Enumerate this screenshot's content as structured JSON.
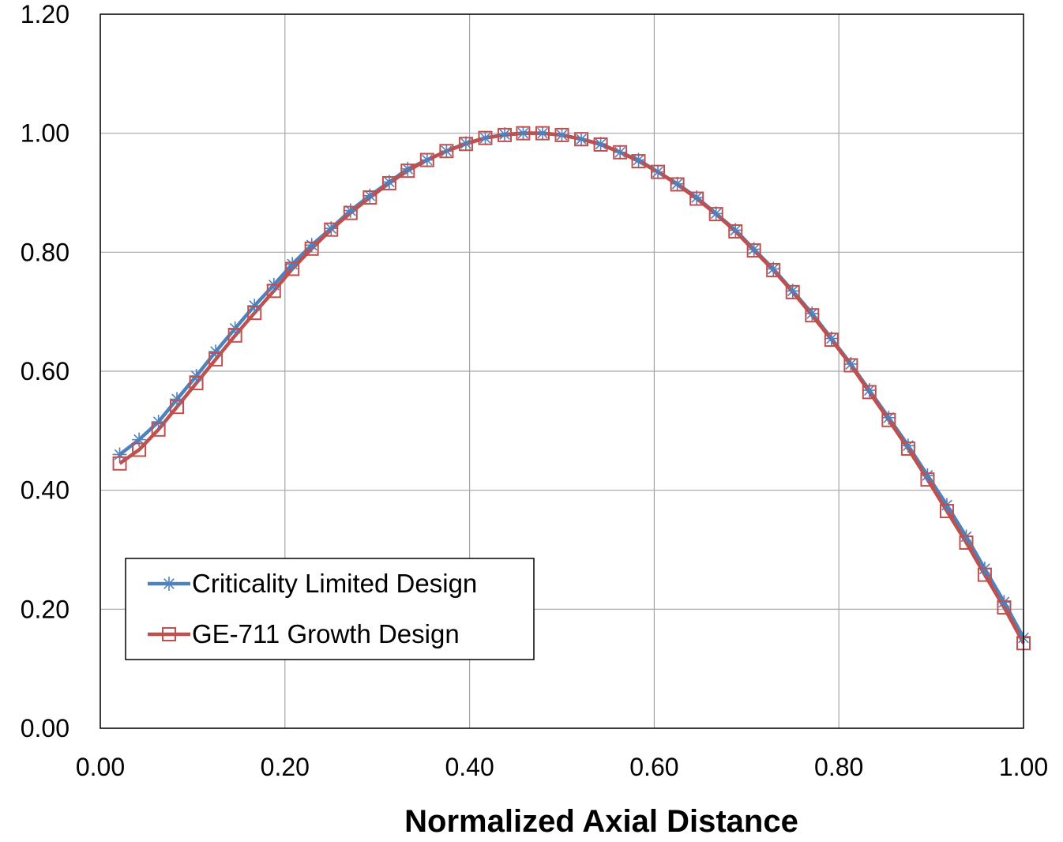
{
  "chart_data": {
    "type": "line",
    "title": "",
    "xlabel": "Normalized Axial Distance",
    "ylabel": "",
    "xlim": [
      0,
      1
    ],
    "ylim": [
      0,
      1.2
    ],
    "grid": true,
    "legend_position": "bottom-left",
    "x_ticks": [
      "0.00",
      "0.20",
      "0.40",
      "0.60",
      "0.80",
      "1.00"
    ],
    "y_ticks": [
      "0.00",
      "0.20",
      "0.40",
      "0.60",
      "0.80",
      "1.00",
      "1.20"
    ],
    "x": [
      0.021,
      0.042,
      0.063,
      0.083,
      0.104,
      0.125,
      0.146,
      0.167,
      0.188,
      0.208,
      0.229,
      0.25,
      0.271,
      0.292,
      0.313,
      0.333,
      0.354,
      0.375,
      0.396,
      0.417,
      0.438,
      0.458,
      0.479,
      0.5,
      0.521,
      0.542,
      0.563,
      0.583,
      0.604,
      0.625,
      0.646,
      0.667,
      0.688,
      0.708,
      0.729,
      0.75,
      0.771,
      0.792,
      0.813,
      0.833,
      0.854,
      0.875,
      0.896,
      0.917,
      0.938,
      0.958,
      0.979,
      1.0
    ],
    "series": [
      {
        "name": "Criticality Limited Design",
        "color": "#4f81bd",
        "marker": "asterisk",
        "values": [
          0.46,
          0.485,
          0.515,
          0.553,
          0.592,
          0.633,
          0.672,
          0.71,
          0.745,
          0.78,
          0.812,
          0.84,
          0.87,
          0.895,
          0.918,
          0.94,
          0.955,
          0.97,
          0.983,
          0.992,
          0.998,
          1.0,
          1.0,
          0.997,
          0.99,
          0.982,
          0.968,
          0.955,
          0.935,
          0.915,
          0.892,
          0.865,
          0.837,
          0.805,
          0.772,
          0.735,
          0.697,
          0.655,
          0.612,
          0.568,
          0.522,
          0.475,
          0.425,
          0.375,
          0.322,
          0.268,
          0.212,
          0.152
        ]
      },
      {
        "name": "GE-711 Growth Design",
        "color": "#c0504d",
        "marker": "square",
        "values": [
          0.445,
          0.468,
          0.502,
          0.54,
          0.58,
          0.62,
          0.66,
          0.698,
          0.735,
          0.772,
          0.806,
          0.838,
          0.866,
          0.892,
          0.916,
          0.937,
          0.955,
          0.97,
          0.982,
          0.992,
          0.997,
          1.0,
          1.0,
          0.997,
          0.99,
          0.981,
          0.968,
          0.953,
          0.935,
          0.914,
          0.89,
          0.864,
          0.835,
          0.803,
          0.77,
          0.733,
          0.694,
          0.653,
          0.61,
          0.565,
          0.518,
          0.47,
          0.418,
          0.365,
          0.312,
          0.258,
          0.203,
          0.143
        ]
      }
    ]
  }
}
